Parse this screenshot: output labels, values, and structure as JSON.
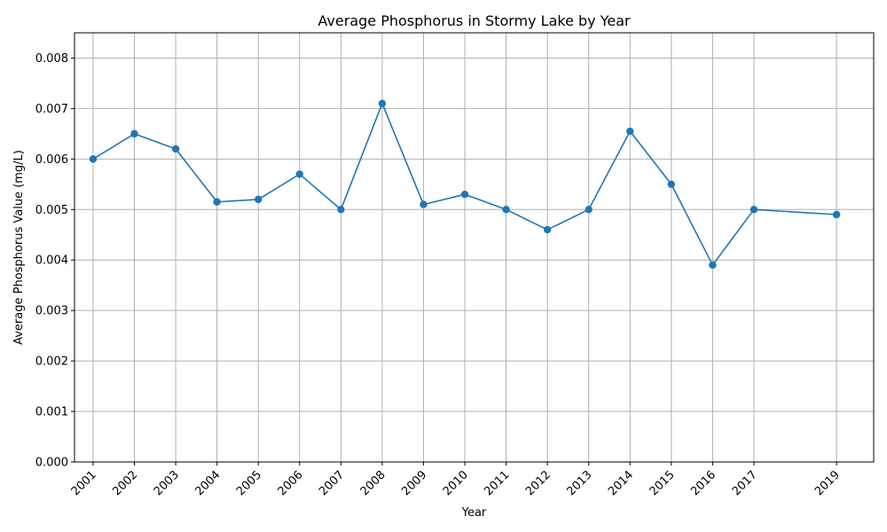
{
  "chart_data": {
    "type": "line",
    "title": "Average Phosphorus in Stormy Lake by Year",
    "xlabel": "Year",
    "ylabel": "Average Phosphorus Value (mg/L)",
    "x": [
      2001,
      2002,
      2003,
      2004,
      2005,
      2006,
      2007,
      2008,
      2009,
      2010,
      2011,
      2012,
      2013,
      2014,
      2015,
      2016,
      2017,
      2019
    ],
    "x_tick_labels": [
      "2001",
      "2002",
      "2003",
      "2004",
      "2005",
      "2006",
      "2007",
      "2008",
      "2009",
      "2010",
      "2011",
      "2012",
      "2013",
      "2014",
      "2015",
      "2016",
      "2017",
      "2019"
    ],
    "series": [
      {
        "values": [
          0.006,
          0.0065,
          0.0062,
          0.00515,
          0.0052,
          0.0057,
          0.005,
          0.0071,
          0.0051,
          0.0053,
          0.005,
          0.0046,
          0.005,
          0.00655,
          0.0055,
          0.0039,
          0.005,
          0.0049
        ],
        "color": "#1f77b4",
        "marker": "circle"
      }
    ],
    "xlim": [
      2000.55,
      2019.9
    ],
    "ylim": [
      0,
      0.0085
    ],
    "y_ticks": [
      0,
      0.001,
      0.002,
      0.003,
      0.004,
      0.005,
      0.006,
      0.007,
      0.008
    ],
    "y_tick_labels": [
      "0.000",
      "0.001",
      "0.002",
      "0.003",
      "0.004",
      "0.005",
      "0.006",
      "0.007",
      "0.008"
    ],
    "grid": true,
    "x_tick_rotation": 45
  }
}
